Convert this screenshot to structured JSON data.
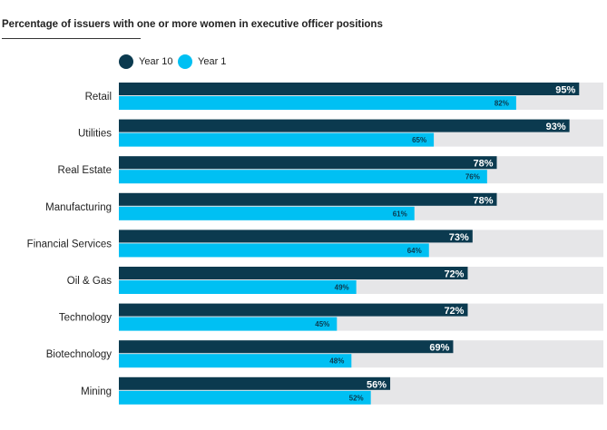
{
  "chart_data": {
    "type": "bar",
    "orientation": "horizontal",
    "title": "Percentage of issuers with one or more women in executive officer positions",
    "categories": [
      "Retail",
      "Utilities",
      "Real Estate",
      "Manufacturing",
      "Financial Services",
      "Oil & Gas",
      "Technology",
      "Biotechnology",
      "Mining"
    ],
    "series": [
      {
        "name": "Year 10",
        "color": "#0b3a4f",
        "values": [
          95,
          93,
          78,
          78,
          73,
          72,
          72,
          69,
          56
        ]
      },
      {
        "name": "Year 1",
        "color": "#00c0f3",
        "values": [
          82,
          65,
          76,
          61,
          64,
          49,
          45,
          48,
          52
        ]
      }
    ],
    "xlim": [
      0,
      100
    ],
    "track_color": "#e6e6e8",
    "legend_position": "top",
    "grid": false
  }
}
